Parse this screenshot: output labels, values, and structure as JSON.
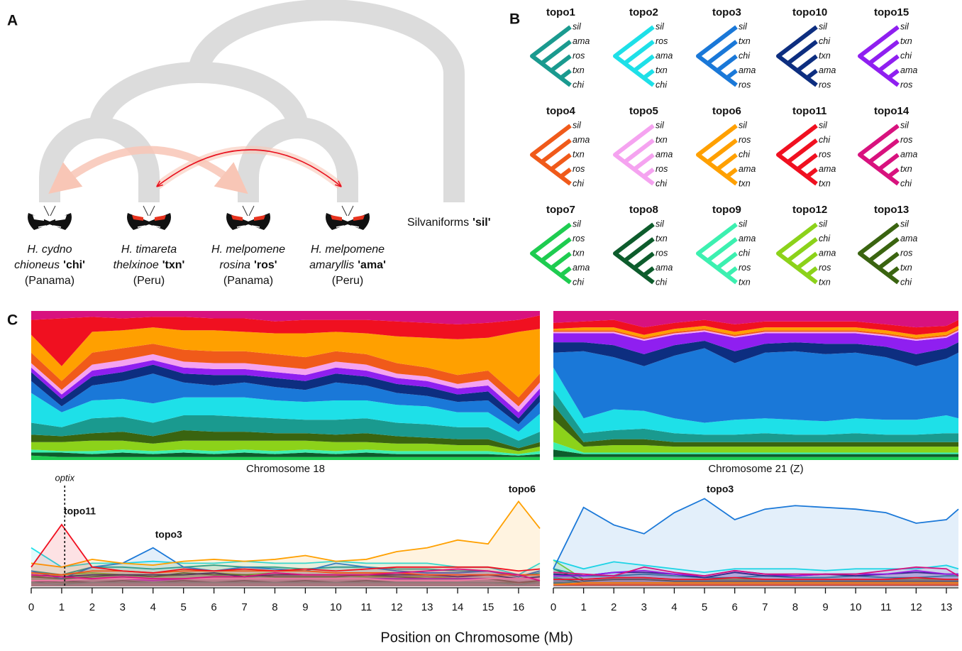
{
  "panel_labels": [
    "A",
    "B",
    "C"
  ],
  "panel_a": {
    "taxa": [
      {
        "species": "H. cydno",
        "subspecies": "chioneus",
        "code": "'chi'",
        "locality": "(Panama)"
      },
      {
        "species": "H. timareta",
        "subspecies": "thelxinoe",
        "code": "'txn'",
        "locality": "(Peru)"
      },
      {
        "species": "H. melpomene",
        "subspecies": "rosina",
        "code": "'ros'",
        "locality": "(Panama)"
      },
      {
        "species": "H. melpomene",
        "subspecies": "amaryllis",
        "code": "'ama'",
        "locality": "(Peru)"
      }
    ],
    "outgroup": {
      "name": "Silvaniforms",
      "code": "'sil'"
    }
  },
  "panel_b": {
    "topologies": [
      {
        "name": "topo1",
        "leaves": [
          "sil",
          "ama",
          "ros",
          "txn",
          "chi"
        ]
      },
      {
        "name": "topo2",
        "leaves": [
          "sil",
          "ros",
          "ama",
          "txn",
          "chi"
        ]
      },
      {
        "name": "topo3",
        "leaves": [
          "sil",
          "txn",
          "chi",
          "ama",
          "ros"
        ]
      },
      {
        "name": "topo10",
        "leaves": [
          "sil",
          "chi",
          "txn",
          "ama",
          "ros"
        ]
      },
      {
        "name": "topo15",
        "leaves": [
          "sil",
          "txn",
          "chi",
          "ama",
          "ros"
        ]
      },
      {
        "name": "topo4",
        "leaves": [
          "sil",
          "ama",
          "txn",
          "ros",
          "chi"
        ]
      },
      {
        "name": "topo5",
        "leaves": [
          "sil",
          "txn",
          "ama",
          "ros",
          "chi"
        ]
      },
      {
        "name": "topo6",
        "leaves": [
          "sil",
          "ros",
          "chi",
          "ama",
          "txn"
        ]
      },
      {
        "name": "topo11",
        "leaves": [
          "sil",
          "chi",
          "ros",
          "ama",
          "txn"
        ]
      },
      {
        "name": "topo14",
        "leaves": [
          "sil",
          "ros",
          "ama",
          "txn",
          "chi"
        ]
      },
      {
        "name": "topo7",
        "leaves": [
          "sil",
          "ros",
          "txn",
          "ama",
          "chi"
        ]
      },
      {
        "name": "topo8",
        "leaves": [
          "sil",
          "txn",
          "ros",
          "ama",
          "chi"
        ]
      },
      {
        "name": "topo9",
        "leaves": [
          "sil",
          "ama",
          "chi",
          "ros",
          "txn"
        ]
      },
      {
        "name": "topo12",
        "leaves": [
          "sil",
          "chi",
          "ama",
          "ros",
          "txn"
        ]
      },
      {
        "name": "topo13",
        "leaves": [
          "sil",
          "ama",
          "ros",
          "txn",
          "chi"
        ]
      }
    ]
  },
  "x_label": "Position on Chromosome (Mb)",
  "chart_data": [
    {
      "type": "weights",
      "title": "Chromosome 18",
      "x": [
        0,
        1,
        2,
        3,
        4,
        5,
        6,
        7,
        8,
        9,
        10,
        11,
        12,
        13,
        14,
        15,
        16,
        16.7
      ],
      "xlim": [
        0,
        16.7
      ],
      "xticks": [
        0,
        1,
        2,
        3,
        4,
        5,
        6,
        7,
        8,
        9,
        10,
        11,
        12,
        13,
        14,
        15,
        16
      ],
      "ylim": [
        0,
        1
      ],
      "line_ylim": [
        0,
        0.5
      ],
      "marker": {
        "text": "optix",
        "x": 1.1
      },
      "annotations": [
        {
          "text": "topo11",
          "x": 1
        },
        {
          "text": "topo3",
          "x": 4
        },
        {
          "text": "topo6",
          "x": 15.6
        }
      ],
      "series": [
        {
          "name": "topo7",
          "color": "#1ecc50",
          "values": [
            0.03,
            0.02,
            0.02,
            0.02,
            0.02,
            0.02,
            0.02,
            0.02,
            0.02,
            0.02,
            0.02,
            0.02,
            0.02,
            0.02,
            0.02,
            0.02,
            0.02,
            0.02
          ]
        },
        {
          "name": "topo8",
          "color": "#0d5c2c",
          "values": [
            0.02,
            0.03,
            0.02,
            0.03,
            0.02,
            0.03,
            0.02,
            0.03,
            0.02,
            0.03,
            0.02,
            0.03,
            0.02,
            0.02,
            0.02,
            0.02,
            0.01,
            0.02
          ]
        },
        {
          "name": "topo9",
          "color": "#3cf0b0",
          "values": [
            0.02,
            0.01,
            0.02,
            0.02,
            0.02,
            0.02,
            0.02,
            0.02,
            0.02,
            0.02,
            0.02,
            0.02,
            0.02,
            0.02,
            0.02,
            0.02,
            0.01,
            0.02
          ]
        },
        {
          "name": "topo12",
          "color": "#8cd21a",
          "values": [
            0.05,
            0.06,
            0.07,
            0.06,
            0.05,
            0.06,
            0.07,
            0.06,
            0.07,
            0.06,
            0.06,
            0.05,
            0.05,
            0.05,
            0.04,
            0.04,
            0.02,
            0.03
          ]
        },
        {
          "name": "topo13",
          "color": "#3a6410",
          "values": [
            0.05,
            0.04,
            0.05,
            0.06,
            0.05,
            0.07,
            0.06,
            0.06,
            0.05,
            0.05,
            0.05,
            0.06,
            0.05,
            0.04,
            0.04,
            0.04,
            0.02,
            0.03
          ]
        },
        {
          "name": "topo1",
          "color": "#1a9a8f",
          "values": [
            0.08,
            0.06,
            0.1,
            0.1,
            0.09,
            0.1,
            0.11,
            0.1,
            0.1,
            0.09,
            0.1,
            0.1,
            0.09,
            0.09,
            0.08,
            0.08,
            0.05,
            0.07
          ]
        },
        {
          "name": "topo2",
          "color": "#1ee0e8",
          "values": [
            0.2,
            0.1,
            0.12,
            0.12,
            0.13,
            0.12,
            0.12,
            0.13,
            0.12,
            0.12,
            0.13,
            0.12,
            0.12,
            0.12,
            0.1,
            0.1,
            0.06,
            0.12
          ]
        },
        {
          "name": "topo3",
          "color": "#1a78d8",
          "values": [
            0.08,
            0.04,
            0.1,
            0.12,
            0.2,
            0.1,
            0.08,
            0.1,
            0.09,
            0.08,
            0.12,
            0.1,
            0.08,
            0.07,
            0.07,
            0.08,
            0.05,
            0.08
          ]
        },
        {
          "name": "topo10",
          "color": "#0d2e80",
          "values": [
            0.06,
            0.05,
            0.06,
            0.06,
            0.06,
            0.06,
            0.07,
            0.05,
            0.06,
            0.06,
            0.06,
            0.06,
            0.06,
            0.06,
            0.05,
            0.06,
            0.04,
            0.05
          ]
        },
        {
          "name": "topo15",
          "color": "#8f1ff0",
          "values": [
            0.03,
            0.03,
            0.04,
            0.04,
            0.03,
            0.04,
            0.04,
            0.04,
            0.04,
            0.04,
            0.04,
            0.04,
            0.04,
            0.04,
            0.04,
            0.04,
            0.04,
            0.04
          ]
        },
        {
          "name": "topo5",
          "color": "#f5a3f0",
          "values": [
            0.03,
            0.03,
            0.04,
            0.04,
            0.04,
            0.04,
            0.04,
            0.04,
            0.04,
            0.04,
            0.04,
            0.04,
            0.03,
            0.03,
            0.03,
            0.04,
            0.04,
            0.04
          ]
        },
        {
          "name": "topo4",
          "color": "#f05a1a",
          "values": [
            0.07,
            0.06,
            0.08,
            0.08,
            0.07,
            0.08,
            0.08,
            0.08,
            0.08,
            0.08,
            0.07,
            0.07,
            0.07,
            0.06,
            0.06,
            0.06,
            0.06,
            0.06
          ]
        },
        {
          "name": "topo6",
          "color": "#ffa000",
          "values": [
            0.12,
            0.1,
            0.14,
            0.12,
            0.11,
            0.13,
            0.14,
            0.13,
            0.14,
            0.16,
            0.13,
            0.14,
            0.18,
            0.2,
            0.24,
            0.22,
            0.44,
            0.3
          ]
        },
        {
          "name": "topo11",
          "color": "#f01020",
          "values": [
            0.1,
            0.32,
            0.1,
            0.08,
            0.07,
            0.09,
            0.08,
            0.09,
            0.08,
            0.09,
            0.08,
            0.09,
            0.1,
            0.1,
            0.1,
            0.1,
            0.08,
            0.09
          ]
        },
        {
          "name": "topo14",
          "color": "#d8127e",
          "values": [
            0.06,
            0.05,
            0.04,
            0.05,
            0.04,
            0.04,
            0.05,
            0.05,
            0.07,
            0.06,
            0.06,
            0.06,
            0.07,
            0.08,
            0.09,
            0.08,
            0.06,
            0.03
          ]
        }
      ]
    },
    {
      "type": "weights",
      "title": "Chromosome 21 (Z)",
      "x": [
        0,
        1,
        2,
        3,
        4,
        5,
        6,
        7,
        8,
        9,
        10,
        11,
        12,
        13,
        13.4
      ],
      "xlim": [
        0,
        13.4
      ],
      "xticks": [
        0,
        1,
        2,
        3,
        4,
        5,
        6,
        7,
        8,
        9,
        10,
        11,
        12,
        13
      ],
      "ylim": [
        0,
        1
      ],
      "line_ylim": [
        0,
        0.55
      ],
      "annotations": [
        {
          "text": "topo3",
          "x": 5
        }
      ],
      "series": [
        {
          "name": "topo7",
          "color": "#1ecc50",
          "values": [
            0.02,
            0.02,
            0.02,
            0.02,
            0.02,
            0.02,
            0.02,
            0.02,
            0.02,
            0.02,
            0.02,
            0.02,
            0.02,
            0.02,
            0.02
          ]
        },
        {
          "name": "topo8",
          "color": "#0d5c2c",
          "values": [
            0.05,
            0.02,
            0.02,
            0.02,
            0.02,
            0.02,
            0.02,
            0.02,
            0.02,
            0.02,
            0.02,
            0.02,
            0.02,
            0.02,
            0.02
          ]
        },
        {
          "name": "topo9",
          "color": "#3cf0b0",
          "values": [
            0.05,
            0.01,
            0.01,
            0.01,
            0.01,
            0.01,
            0.01,
            0.01,
            0.01,
            0.01,
            0.01,
            0.01,
            0.01,
            0.01,
            0.01
          ]
        },
        {
          "name": "topo12",
          "color": "#8cd21a",
          "values": [
            0.15,
            0.04,
            0.05,
            0.05,
            0.04,
            0.04,
            0.04,
            0.04,
            0.04,
            0.04,
            0.04,
            0.04,
            0.04,
            0.04,
            0.04
          ]
        },
        {
          "name": "topo13",
          "color": "#3a6410",
          "values": [
            0.1,
            0.03,
            0.04,
            0.04,
            0.03,
            0.03,
            0.03,
            0.03,
            0.03,
            0.03,
            0.03,
            0.03,
            0.03,
            0.03,
            0.03
          ]
        },
        {
          "name": "topo1",
          "color": "#1a9a8f",
          "values": [
            0.1,
            0.06,
            0.06,
            0.07,
            0.06,
            0.05,
            0.05,
            0.06,
            0.05,
            0.05,
            0.06,
            0.05,
            0.05,
            0.06,
            0.06
          ]
        },
        {
          "name": "topo2",
          "color": "#1ee0e8",
          "values": [
            0.15,
            0.1,
            0.14,
            0.12,
            0.1,
            0.08,
            0.1,
            0.1,
            0.1,
            0.09,
            0.1,
            0.1,
            0.1,
            0.12,
            0.1
          ]
        },
        {
          "name": "topo3",
          "color": "#1a78d8",
          "values": [
            0.1,
            0.45,
            0.35,
            0.3,
            0.42,
            0.5,
            0.38,
            0.44,
            0.46,
            0.45,
            0.44,
            0.42,
            0.36,
            0.38,
            0.44
          ]
        },
        {
          "name": "topo10",
          "color": "#0d2e80",
          "values": [
            0.07,
            0.06,
            0.08,
            0.08,
            0.07,
            0.05,
            0.08,
            0.06,
            0.06,
            0.07,
            0.06,
            0.07,
            0.08,
            0.07,
            0.07
          ]
        },
        {
          "name": "topo15",
          "color": "#8f1ff0",
          "values": [
            0.06,
            0.06,
            0.08,
            0.09,
            0.07,
            0.06,
            0.09,
            0.07,
            0.06,
            0.07,
            0.07,
            0.07,
            0.09,
            0.07,
            0.07
          ]
        },
        {
          "name": "topo5",
          "color": "#f5a3f0",
          "values": [
            0.01,
            0.01,
            0.01,
            0.01,
            0.01,
            0.01,
            0.01,
            0.01,
            0.01,
            0.01,
            0.01,
            0.01,
            0.01,
            0.01,
            0.01
          ]
        },
        {
          "name": "topo4",
          "color": "#f05a1a",
          "values": [
            0.01,
            0.01,
            0.01,
            0.01,
            0.01,
            0.01,
            0.01,
            0.01,
            0.01,
            0.01,
            0.01,
            0.01,
            0.01,
            0.01,
            0.01
          ]
        },
        {
          "name": "topo6",
          "color": "#ffa000",
          "values": [
            0.01,
            0.02,
            0.02,
            0.02,
            0.02,
            0.02,
            0.02,
            0.02,
            0.02,
            0.02,
            0.02,
            0.02,
            0.02,
            0.02,
            0.02
          ]
        },
        {
          "name": "topo11",
          "color": "#f01020",
          "values": [
            0.04,
            0.04,
            0.05,
            0.05,
            0.04,
            0.04,
            0.05,
            0.04,
            0.04,
            0.04,
            0.04,
            0.04,
            0.05,
            0.04,
            0.04
          ]
        },
        {
          "name": "topo14",
          "color": "#d8127e",
          "values": [
            0.08,
            0.07,
            0.06,
            0.11,
            0.08,
            0.06,
            0.09,
            0.07,
            0.07,
            0.07,
            0.07,
            0.09,
            0.11,
            0.1,
            0.06
          ]
        }
      ]
    }
  ]
}
